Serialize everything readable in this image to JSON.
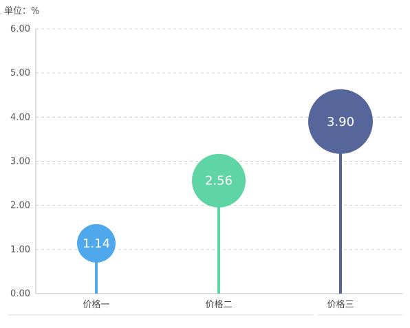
{
  "chart_data": {
    "type": "lollipop",
    "unit_label": "单位：%",
    "categories": [
      "价格一",
      "价格二",
      "价格三"
    ],
    "values": [
      1.14,
      2.56,
      3.9
    ],
    "value_labels": [
      "1.14",
      "2.56",
      "3.90"
    ],
    "y_ticks": [
      "0.00",
      "1.00",
      "2.00",
      "3.00",
      "4.00",
      "5.00",
      "6.00"
    ],
    "ylim": [
      0,
      6
    ],
    "grid": true,
    "colors": [
      "#4fa7ec",
      "#5fd4a4",
      "#56669a"
    ]
  }
}
